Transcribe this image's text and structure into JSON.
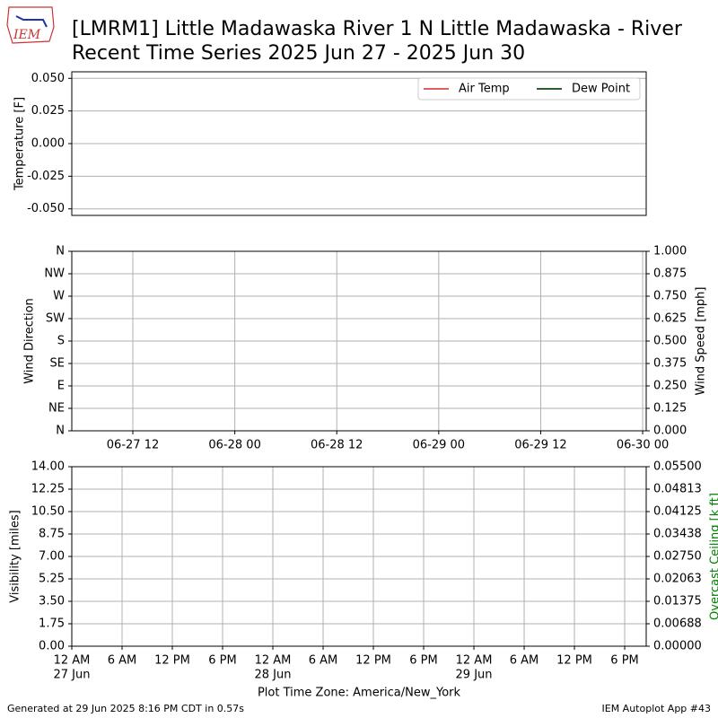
{
  "logo": "IEM",
  "chart_data": [
    {
      "type": "line",
      "title": "[LMRM1] Little Madawaska River 1 N Little Madawaska - River",
      "subtitle": "Recent Time Series 2025 Jun 27 - 2025 Jun 30",
      "ylabel": "Temperature [F]",
      "x": [],
      "series": [
        {
          "name": "Air Temp",
          "color": "#e06060",
          "values": []
        },
        {
          "name": "Dew Point",
          "color": "#2e5e2e",
          "values": []
        }
      ],
      "ylim": [
        -0.055,
        0.055
      ],
      "yticks": [
        {
          "value": -0.05,
          "label": "-0.050"
        },
        {
          "value": -0.025,
          "label": "-0.025"
        },
        {
          "value": 0,
          "label": "0.000"
        },
        {
          "value": 0.025,
          "label": "0.025"
        },
        {
          "value": 0.05,
          "label": "0.050"
        }
      ],
      "grid": true,
      "legend": "upper right"
    },
    {
      "type": "line",
      "ylabel": "Wind Direction",
      "y2label": "Wind Speed [mph]",
      "xlim": [
        "06-27 04:49",
        "06-30 00:25"
      ],
      "xticks": [
        {
          "value": "06-27 12:00",
          "label": "06-27 12"
        },
        {
          "value": "06-28 00:00",
          "label": "06-28 00"
        },
        {
          "value": "06-28 12:00",
          "label": "06-28 12"
        },
        {
          "value": "06-29 00:00",
          "label": "06-29 00"
        },
        {
          "value": "06-29 12:00",
          "label": "06-29 12"
        },
        {
          "value": "06-30 00:00",
          "label": "06-30 00"
        }
      ],
      "ylim": [
        0,
        360
      ],
      "yticks": [
        {
          "value": 0,
          "label": "N"
        },
        {
          "value": 45,
          "label": "NE"
        },
        {
          "value": 90,
          "label": "E"
        },
        {
          "value": 135,
          "label": "SE"
        },
        {
          "value": 180,
          "label": "S"
        },
        {
          "value": 225,
          "label": "SW"
        },
        {
          "value": 270,
          "label": "W"
        },
        {
          "value": 315,
          "label": "NW"
        },
        {
          "value": 360,
          "label": "N"
        }
      ],
      "y2lim": [
        0,
        1
      ],
      "y2ticks": [
        {
          "value": 0,
          "label": "0.000"
        },
        {
          "value": 0.125,
          "label": "0.125"
        },
        {
          "value": 0.25,
          "label": "0.250"
        },
        {
          "value": 0.375,
          "label": "0.375"
        },
        {
          "value": 0.5,
          "label": "0.500"
        },
        {
          "value": 0.625,
          "label": "0.625"
        },
        {
          "value": 0.75,
          "label": "0.750"
        },
        {
          "value": 0.875,
          "label": "0.875"
        },
        {
          "value": 1,
          "label": "1.000"
        }
      ],
      "grid": true
    },
    {
      "type": "line",
      "ylabel": "Visibility [miles]",
      "y2label": "Overcast Ceiling [k ft]",
      "y2label_color": "#008000",
      "xlabel": "Plot Time Zone: America/New_York",
      "xlim": [
        "06-27 00:00",
        "06-29 20:34"
      ],
      "xticks": [
        {
          "value": "06-27 00:00",
          "label": "12 AM",
          "sublabel": "27 Jun"
        },
        {
          "value": "06-27 06:00",
          "label": "6 AM"
        },
        {
          "value": "06-27 12:00",
          "label": "12 PM"
        },
        {
          "value": "06-27 18:00",
          "label": "6 PM"
        },
        {
          "value": "06-28 00:00",
          "label": "12 AM",
          "sublabel": "28 Jun"
        },
        {
          "value": "06-28 06:00",
          "label": "6 AM"
        },
        {
          "value": "06-28 12:00",
          "label": "12 PM"
        },
        {
          "value": "06-28 18:00",
          "label": "6 PM"
        },
        {
          "value": "06-29 00:00",
          "label": "12 AM",
          "sublabel": "29 Jun"
        },
        {
          "value": "06-29 06:00",
          "label": "6 AM"
        },
        {
          "value": "06-29 12:00",
          "label": "12 PM"
        },
        {
          "value": "06-29 18:00",
          "label": "6 PM"
        }
      ],
      "ylim": [
        0,
        14
      ],
      "yticks": [
        {
          "value": 0,
          "label": "0.00"
        },
        {
          "value": 1.75,
          "label": "1.75"
        },
        {
          "value": 3.5,
          "label": "3.50"
        },
        {
          "value": 5.25,
          "label": "5.25"
        },
        {
          "value": 7,
          "label": "7.00"
        },
        {
          "value": 8.75,
          "label": "8.75"
        },
        {
          "value": 10.5,
          "label": "10.50"
        },
        {
          "value": 12.25,
          "label": "12.25"
        },
        {
          "value": 14,
          "label": "14.00"
        }
      ],
      "y2lim": [
        0,
        0.055
      ],
      "y2ticks": [
        {
          "value": 0,
          "label": "0.00000"
        },
        {
          "value": 0.006875,
          "label": "0.00688"
        },
        {
          "value": 0.01375,
          "label": "0.01375"
        },
        {
          "value": 0.020625,
          "label": "0.02063"
        },
        {
          "value": 0.0275,
          "label": "0.02750"
        },
        {
          "value": 0.034375,
          "label": "0.03438"
        },
        {
          "value": 0.04125,
          "label": "0.04125"
        },
        {
          "value": 0.048125,
          "label": "0.04813"
        },
        {
          "value": 0.055,
          "label": "0.05500"
        }
      ],
      "grid": true
    }
  ],
  "footer": {
    "left": "Generated at 29 Jun 2025 8:16 PM CDT in 0.57s",
    "right": "IEM Autoplot App #43"
  }
}
